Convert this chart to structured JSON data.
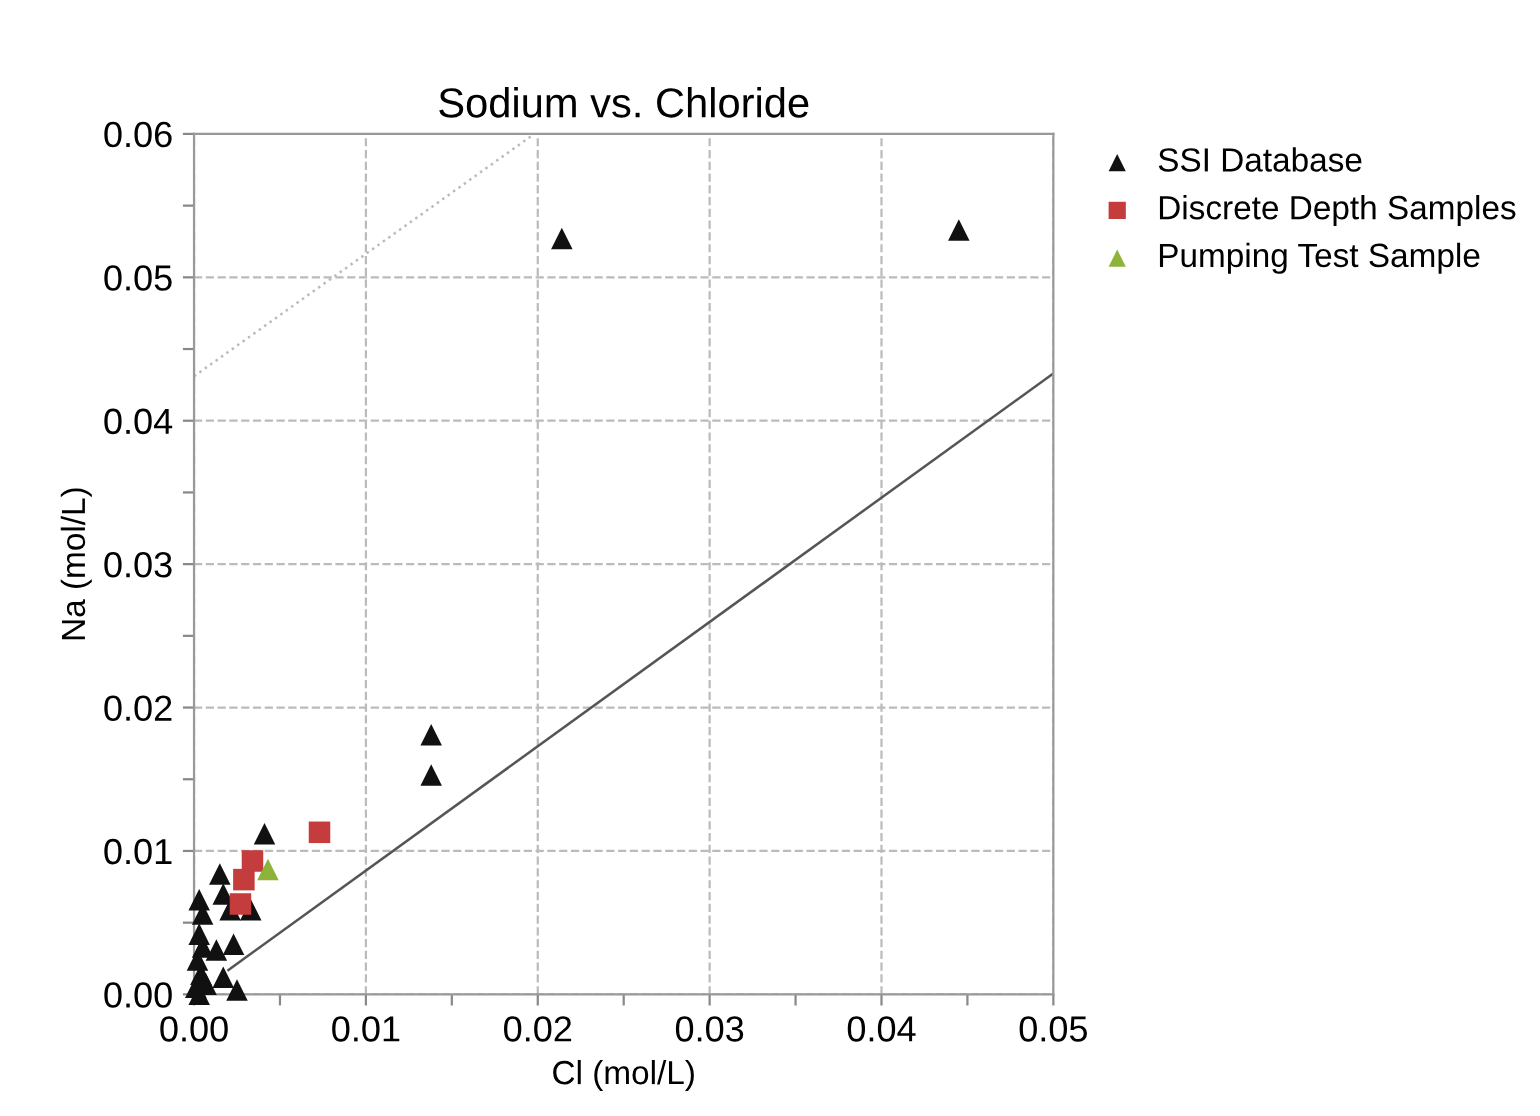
{
  "chart_data": {
    "type": "scatter",
    "title": "Sodium vs. Chloride",
    "xlabel": "Cl (mol/L)",
    "ylabel": "Na (mol/L)",
    "xlim": [
      0,
      0.05
    ],
    "ylim": [
      0,
      0.06
    ],
    "xticks": [
      {
        "value": 0,
        "label": "0.00"
      },
      {
        "value": 0.005,
        "label": null
      },
      {
        "value": 0.01,
        "label": "0.01"
      },
      {
        "value": 0.015,
        "label": null
      },
      {
        "value": 0.02,
        "label": "0.02"
      },
      {
        "value": 0.025,
        "label": null
      },
      {
        "value": 0.03,
        "label": "0.03"
      },
      {
        "value": 0.035,
        "label": null
      },
      {
        "value": 0.04,
        "label": "0.04"
      },
      {
        "value": 0.045,
        "label": null
      },
      {
        "value": 0.05,
        "label": "0.05"
      }
    ],
    "yticks": [
      {
        "value": 0,
        "label": "0.00"
      },
      {
        "value": 0.005,
        "label": null
      },
      {
        "value": 0.01,
        "label": "0.01"
      },
      {
        "value": 0.015,
        "label": null
      },
      {
        "value": 0.02,
        "label": "0.02"
      },
      {
        "value": 0.025,
        "label": null
      },
      {
        "value": 0.03,
        "label": "0.03"
      },
      {
        "value": 0.035,
        "label": null
      },
      {
        "value": 0.04,
        "label": "0.04"
      },
      {
        "value": 0.045,
        "label": null
      },
      {
        "value": 0.05,
        "label": "0.05"
      },
      {
        "value": 0.055,
        "label": null
      },
      {
        "value": 0.06,
        "label": "0.06"
      }
    ],
    "grid": true,
    "legend": "top right",
    "series": [
      {
        "type": "line",
        "color": "#555555",
        "line_style": "solid",
        "marker": "none",
        "x": [
          0.002,
          0.05
        ],
        "values": [
          0.0017,
          0.0433
        ]
      },
      {
        "type": "line",
        "color": "#bbbbbb",
        "line_style": "dotted",
        "marker": "none",
        "x": [
          0,
          0.0198
        ],
        "values": [
          0.0431,
          0.06
        ]
      },
      {
        "name": "SSI Database",
        "color": "#111111",
        "marker": "triangle",
        "x": [
          0.0214,
          0.0445,
          0.0138,
          0.0138,
          0.0041,
          0.0015,
          0.0017,
          0.0021,
          0.0033,
          0.0023,
          0.0013,
          0.0017,
          0.0025,
          0.0003,
          0.0005,
          0.0003,
          0.0005,
          0.0002,
          0.0004,
          0.0001,
          0.0003,
          0.0007
        ],
        "values": [
          0.0527,
          0.0533,
          0.0181,
          0.0153,
          0.0112,
          0.0084,
          0.007,
          0.0059,
          0.0059,
          0.0035,
          0.0031,
          0.0012,
          0.0003,
          0.0066,
          0.0056,
          0.0042,
          0.0033,
          0.0024,
          0.0014,
          0.0005,
          0.0,
          0.0007
        ]
      },
      {
        "name": "Discrete Depth Samples",
        "color": "#c43c3c",
        "marker": "square",
        "x": [
          0.0073,
          0.0029,
          0.0027,
          0.0034
        ],
        "values": [
          0.0113,
          0.008,
          0.0063,
          0.0093
        ]
      },
      {
        "name": "Pumping Test Sample",
        "color": "#8db33a",
        "marker": "triangle",
        "x": [
          0.0043
        ],
        "values": [
          0.0087
        ]
      }
    ]
  }
}
